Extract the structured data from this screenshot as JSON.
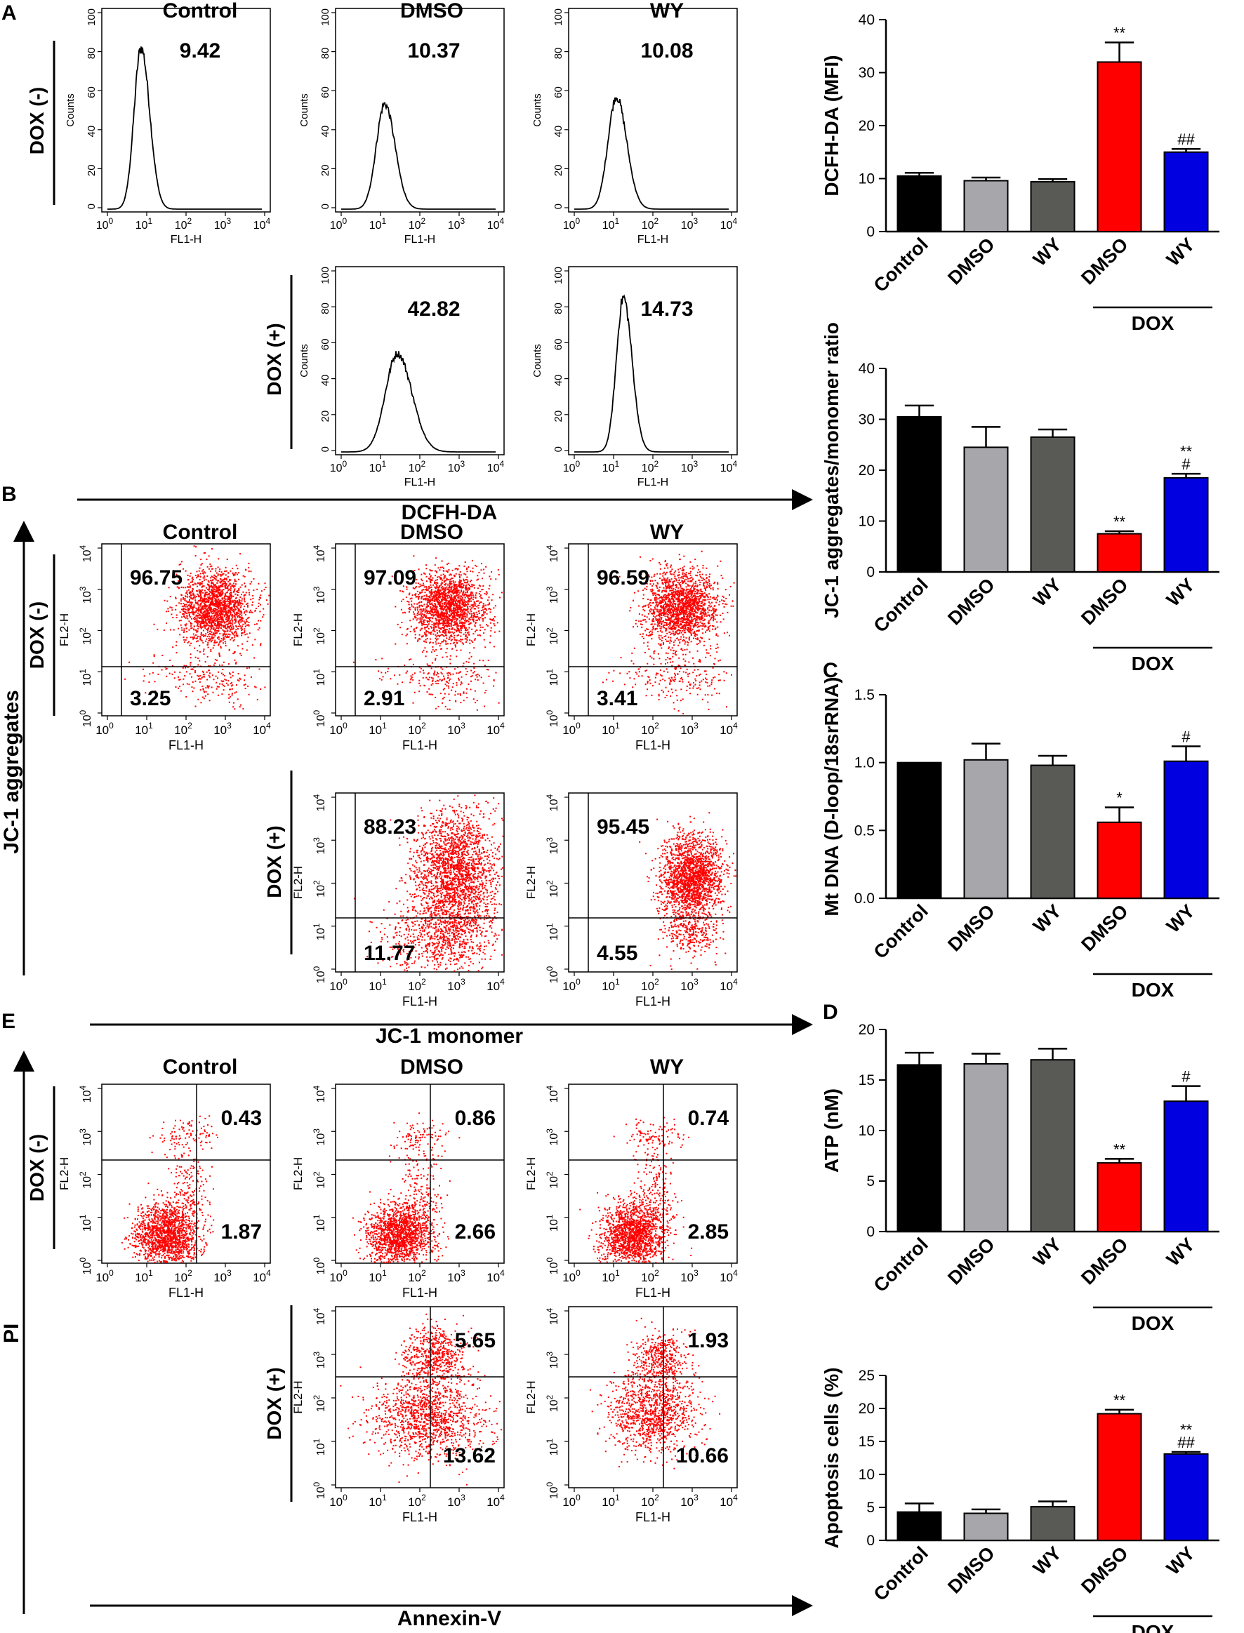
{
  "panels": {
    "A": "A",
    "B": "B",
    "C": "C",
    "D": "D",
    "E": "E"
  },
  "groups": [
    "Control",
    "DMSO",
    "WY"
  ],
  "row_labels": {
    "neg": "DOX (-)",
    "pos": "DOX (+)"
  },
  "hist_axis": {
    "ylabel": "Counts",
    "xlabel": "FL1-H",
    "yticks": [
      "0",
      "20",
      "40",
      "60",
      "80",
      "100"
    ],
    "xtick_exponents": [
      "0",
      "1",
      "2",
      "3",
      "4"
    ],
    "xtick_base": "10"
  },
  "dot_axis": {
    "xlabel": "FL1-H",
    "ylabel": "FL2-H",
    "tick_exponents": [
      "0",
      "1",
      "2",
      "3",
      "4"
    ],
    "tick_base": "10"
  },
  "section_A": {
    "arrow_label": "DCFH-DA",
    "values": {
      "neg": [
        "9.42",
        "10.37",
        "10.08"
      ],
      "pos": [
        "42.82",
        "14.73"
      ]
    }
  },
  "section_B": {
    "arrow_label_x": "JC-1 monomer",
    "arrow_label_y": "JC-1 aggregates",
    "upper": {
      "neg": [
        "96.75",
        "97.09",
        "96.59"
      ],
      "pos": [
        "88.23",
        "95.45"
      ]
    },
    "lower": {
      "neg": [
        "3.25",
        "2.91",
        "3.41"
      ],
      "pos": [
        "11.77",
        "4.55"
      ]
    }
  },
  "section_E": {
    "arrow_label_x": "Annexin-V",
    "arrow_label_y": "PI",
    "upper": {
      "neg": [
        "0.43",
        "0.86",
        "0.74"
      ],
      "pos": [
        "5.65",
        "1.93"
      ]
    },
    "lower": {
      "neg": [
        "1.87",
        "2.66",
        "2.85"
      ],
      "pos": [
        "13.62",
        "10.66"
      ]
    }
  },
  "colors": {
    "Control": "#000000",
    "DMSO": "#a6a6ab",
    "WY": "#595955",
    "DOX_DMSO": "#ff0000",
    "DOX_WY": "#0000e0",
    "dots": "#ff0000"
  },
  "chart_data": [
    {
      "type": "bar",
      "panel": "A",
      "title": "",
      "ylabel": "DCFH-DA (MFI)",
      "categories": [
        "Control",
        "DMSO",
        "WY",
        "DMSO",
        "WY"
      ],
      "group_label": "DOX",
      "values": [
        10.5,
        9.6,
        9.4,
        32,
        15
      ],
      "errors": [
        0.6,
        0.6,
        0.5,
        3.7,
        0.6
      ],
      "sig": [
        "",
        "",
        "",
        "**",
        "##"
      ],
      "ylim": [
        0,
        40
      ],
      "yticks": [
        0,
        10,
        20,
        30,
        40
      ]
    },
    {
      "type": "bar",
      "panel": "B",
      "title": "",
      "ylabel": "JC-1 aggregates/monomer ratio",
      "categories": [
        "Control",
        "DMSO",
        "WY",
        "DMSO",
        "WY"
      ],
      "group_label": "DOX",
      "values": [
        30.5,
        24.5,
        26.5,
        7.5,
        18.5
      ],
      "errors": [
        2.2,
        4.0,
        1.5,
        0.5,
        0.8
      ],
      "sig": [
        "",
        "",
        "",
        "**",
        "**\n#"
      ],
      "ylim": [
        0,
        40
      ],
      "yticks": [
        0,
        10,
        20,
        30,
        40
      ]
    },
    {
      "type": "bar",
      "panel": "C",
      "title": "",
      "ylabel": "Mt DNA (D-loop/18srRNA)",
      "categories": [
        "Control",
        "DMSO",
        "WY",
        "DMSO",
        "WY"
      ],
      "group_label": "DOX",
      "values": [
        1.0,
        1.02,
        0.98,
        0.56,
        1.01
      ],
      "errors": [
        0.0,
        0.12,
        0.07,
        0.11,
        0.11
      ],
      "sig": [
        "",
        "",
        "",
        "*",
        "#"
      ],
      "ylim": [
        0,
        1.5
      ],
      "yticks": [
        0.0,
        0.5,
        1.0,
        1.5
      ]
    },
    {
      "type": "bar",
      "panel": "D",
      "title": "",
      "ylabel": "ATP (nM)",
      "categories": [
        "Control",
        "DMSO",
        "WY",
        "DMSO",
        "WY"
      ],
      "group_label": "DOX",
      "values": [
        16.5,
        16.6,
        17.0,
        6.8,
        12.9
      ],
      "errors": [
        1.2,
        1.0,
        1.1,
        0.4,
        1.5
      ],
      "sig": [
        "",
        "",
        "",
        "**",
        "#"
      ],
      "ylim": [
        0,
        20
      ],
      "yticks": [
        0,
        5,
        10,
        15,
        20
      ]
    },
    {
      "type": "bar",
      "panel": "E",
      "title": "",
      "ylabel": "Apoptosis cells (%)",
      "categories": [
        "Control",
        "DMSO",
        "WY",
        "DMSO",
        "WY"
      ],
      "group_label": "DOX",
      "values": [
        4.3,
        4.1,
        5.1,
        19.2,
        13.1
      ],
      "errors": [
        1.3,
        0.6,
        0.8,
        0.6,
        0.3
      ],
      "sig": [
        "",
        "",
        "",
        "**",
        "**\n##"
      ],
      "ylim": [
        0,
        25
      ],
      "yticks": [
        0,
        5,
        10,
        15,
        20,
        25
      ]
    }
  ]
}
